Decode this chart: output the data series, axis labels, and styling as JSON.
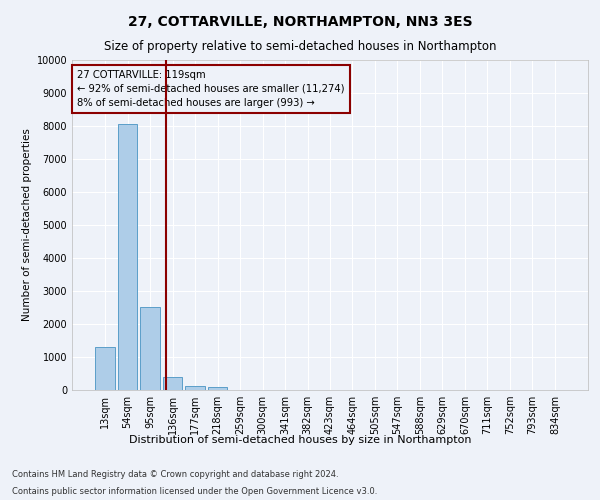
{
  "title": "27, COTTARVILLE, NORTHAMPTON, NN3 3ES",
  "subtitle": "Size of property relative to semi-detached houses in Northampton",
  "xlabel": "Distribution of semi-detached houses by size in Northampton",
  "ylabel": "Number of semi-detached properties",
  "footnote1": "Contains HM Land Registry data © Crown copyright and database right 2024.",
  "footnote2": "Contains public sector information licensed under the Open Government Licence v3.0.",
  "categories": [
    "13sqm",
    "54sqm",
    "95sqm",
    "136sqm",
    "177sqm",
    "218sqm",
    "259sqm",
    "300sqm",
    "341sqm",
    "382sqm",
    "423sqm",
    "464sqm",
    "505sqm",
    "547sqm",
    "588sqm",
    "629sqm",
    "670sqm",
    "711sqm",
    "752sqm",
    "793sqm",
    "834sqm"
  ],
  "values": [
    1300,
    8050,
    2520,
    380,
    130,
    100,
    0,
    0,
    0,
    0,
    0,
    0,
    0,
    0,
    0,
    0,
    0,
    0,
    0,
    0,
    0
  ],
  "bar_color": "#aecde8",
  "bar_edge_color": "#5b9ec9",
  "vline_x": 2.72,
  "vline_color": "#8b0000",
  "annotation_text": "27 COTTARVILLE: 119sqm\n← 92% of semi-detached houses are smaller (11,274)\n8% of semi-detached houses are larger (993) →",
  "annotation_box_color": "#8b0000",
  "ylim": [
    0,
    10000
  ],
  "yticks": [
    0,
    1000,
    2000,
    3000,
    4000,
    5000,
    6000,
    7000,
    8000,
    9000,
    10000
  ],
  "background_color": "#eef2f9",
  "grid_color": "#ffffff",
  "title_fontsize": 10,
  "subtitle_fontsize": 8.5,
  "ylabel_fontsize": 7.5,
  "xlabel_fontsize": 8,
  "tick_fontsize": 7,
  "footnote_fontsize": 6
}
